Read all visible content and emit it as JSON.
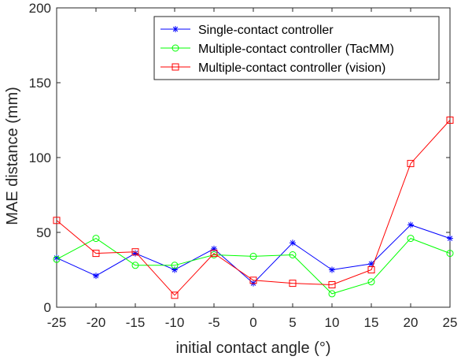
{
  "chart_data": {
    "type": "line",
    "title": "",
    "xlabel": "initial contact angle (°)",
    "ylabel": "MAE distance (mm)",
    "x": [
      -25,
      -20,
      -15,
      -10,
      -5,
      0,
      5,
      10,
      15,
      20,
      25
    ],
    "x_tick_labels": [
      "-25",
      "-20",
      "-15",
      "-10",
      "-5",
      "0",
      "5",
      "10",
      "15",
      "20",
      "25"
    ],
    "y_tick_values": [
      0,
      50,
      100,
      150,
      200
    ],
    "y_tick_labels": [
      "0",
      "50",
      "100",
      "150",
      "200"
    ],
    "xlim": [
      -25,
      25
    ],
    "ylim": [
      0,
      200
    ],
    "grid": false,
    "legend_position": "top-right",
    "series": [
      {
        "name": "Single-contact controller",
        "color": "#0000ff",
        "marker": "asterisk",
        "values": [
          33,
          21,
          36,
          25,
          39,
          16,
          43,
          25,
          29,
          55,
          46
        ]
      },
      {
        "name": "Multiple-contact controller (TacMM)",
        "color": "#00ff00",
        "marker": "circle",
        "values": [
          32,
          46,
          28,
          28,
          35,
          34,
          35,
          9,
          17,
          46,
          36
        ]
      },
      {
        "name": "Multiple-contact controller (vision)",
        "color": "#ff0000",
        "marker": "square",
        "values": [
          58,
          36,
          37,
          8,
          36,
          18,
          16,
          15,
          25,
          96,
          125
        ]
      }
    ]
  }
}
